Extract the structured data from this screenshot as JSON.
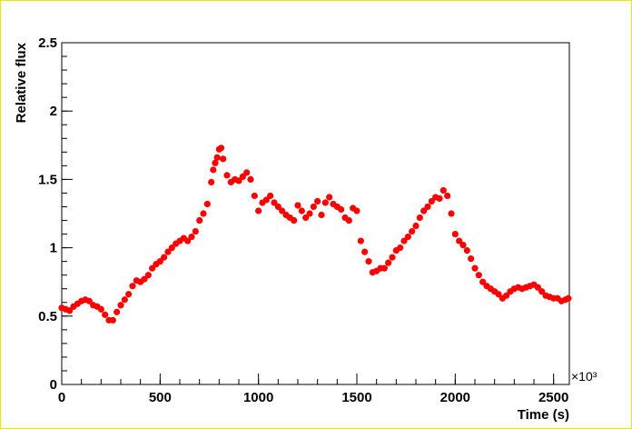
{
  "chart_data": {
    "type": "scatter",
    "xlabel": "Time (s)",
    "ylabel": "Relative flux",
    "x_multiplier": "×10³",
    "color": "#ff0000",
    "xlim": [
      0,
      2580
    ],
    "ylim": [
      0,
      2.5
    ],
    "xticks": [
      0,
      500,
      1000,
      1500,
      2000,
      2500
    ],
    "yticks": [
      0,
      0.5,
      1,
      1.5,
      2,
      2.5
    ],
    "x": [
      0,
      20,
      40,
      60,
      80,
      100,
      120,
      140,
      160,
      180,
      200,
      220,
      240,
      260,
      280,
      300,
      320,
      340,
      360,
      380,
      400,
      420,
      440,
      460,
      480,
      500,
      520,
      540,
      560,
      580,
      600,
      620,
      640,
      660,
      680,
      700,
      720,
      740,
      760,
      770,
      780,
      790,
      800,
      810,
      820,
      840,
      860,
      880,
      900,
      920,
      940,
      960,
      980,
      1000,
      1020,
      1040,
      1060,
      1080,
      1100,
      1120,
      1140,
      1160,
      1180,
      1200,
      1220,
      1240,
      1260,
      1280,
      1300,
      1320,
      1340,
      1360,
      1380,
      1400,
      1420,
      1440,
      1460,
      1480,
      1500,
      1520,
      1540,
      1560,
      1580,
      1600,
      1620,
      1640,
      1660,
      1680,
      1700,
      1720,
      1740,
      1760,
      1780,
      1800,
      1820,
      1840,
      1860,
      1880,
      1900,
      1920,
      1940,
      1960,
      1980,
      2000,
      2020,
      2040,
      2060,
      2080,
      2100,
      2120,
      2140,
      2160,
      2180,
      2200,
      2220,
      2240,
      2260,
      2280,
      2300,
      2320,
      2340,
      2360,
      2380,
      2400,
      2420,
      2440,
      2460,
      2480,
      2500,
      2520,
      2540,
      2560,
      2575
    ],
    "values": [
      0.56,
      0.55,
      0.54,
      0.57,
      0.59,
      0.61,
      0.62,
      0.61,
      0.58,
      0.57,
      0.55,
      0.51,
      0.47,
      0.47,
      0.53,
      0.58,
      0.62,
      0.66,
      0.72,
      0.76,
      0.75,
      0.77,
      0.8,
      0.85,
      0.88,
      0.9,
      0.93,
      0.97,
      1.0,
      1.03,
      1.05,
      1.07,
      1.05,
      1.08,
      1.12,
      1.2,
      1.25,
      1.32,
      1.48,
      1.57,
      1.62,
      1.66,
      1.72,
      1.73,
      1.65,
      1.53,
      1.48,
      1.5,
      1.49,
      1.52,
      1.55,
      1.5,
      1.38,
      1.27,
      1.33,
      1.35,
      1.38,
      1.33,
      1.3,
      1.27,
      1.24,
      1.22,
      1.2,
      1.31,
      1.27,
      1.22,
      1.25,
      1.3,
      1.34,
      1.24,
      1.33,
      1.37,
      1.32,
      1.3,
      1.28,
      1.22,
      1.2,
      1.29,
      1.27,
      1.05,
      0.97,
      0.9,
      0.82,
      0.83,
      0.85,
      0.85,
      0.89,
      0.93,
      0.98,
      1.0,
      1.05,
      1.08,
      1.12,
      1.16,
      1.22,
      1.27,
      1.3,
      1.34,
      1.37,
      1.36,
      1.42,
      1.38,
      1.25,
      1.1,
      1.05,
      1.02,
      0.98,
      0.92,
      0.85,
      0.8,
      0.75,
      0.72,
      0.7,
      0.68,
      0.66,
      0.63,
      0.65,
      0.68,
      0.7,
      0.71,
      0.7,
      0.71,
      0.72,
      0.73,
      0.71,
      0.68,
      0.65,
      0.64,
      0.63,
      0.63,
      0.61,
      0.62,
      0.63
    ]
  }
}
